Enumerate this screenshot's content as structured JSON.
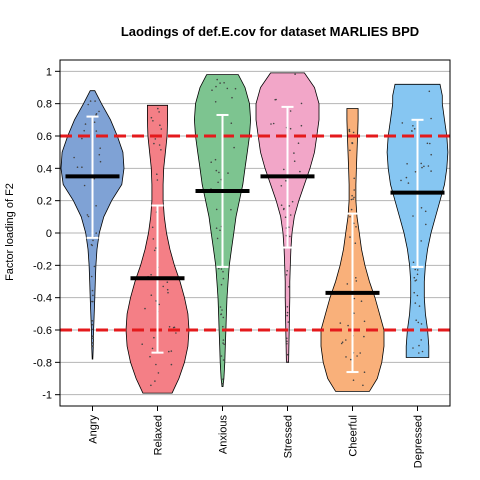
{
  "chart_data": {
    "type": "violin",
    "title": "Laodings of def.E.cov for dataset MARLIES BPD",
    "xlabel": "",
    "ylabel": "Factor loading of F2",
    "ylim": [
      -1.07,
      1.07
    ],
    "yticks": [
      1,
      0.8,
      0.6,
      0.4,
      0.2,
      0,
      -0.2,
      -0.4,
      -0.6,
      -0.8,
      -1
    ],
    "yticklabels": [
      "1",
      "0.8",
      "0.6",
      "0.4",
      "0.2",
      "0",
      "-0.2",
      "-0.4",
      "-0.6",
      "-0.8",
      "-1"
    ],
    "grid": "horizontal",
    "reference_lines": [
      0.6,
      -0.6
    ],
    "reference_line_color": "#e41a1c",
    "categories": [
      "Angry",
      "Relaxed",
      "Anxious",
      "Stressed",
      "Cheerful",
      "Depressed"
    ],
    "series": [
      {
        "color": "#7fa2d5",
        "min": -0.78,
        "max": 0.88,
        "mean": 0.35,
        "sd_low": -0.03,
        "sd_high": 0.72,
        "density": [
          [
            0.88,
            0.02
          ],
          [
            0.8,
            0.08
          ],
          [
            0.7,
            0.16
          ],
          [
            0.6,
            0.22
          ],
          [
            0.5,
            0.27
          ],
          [
            0.4,
            0.28
          ],
          [
            0.3,
            0.26
          ],
          [
            0.2,
            0.17
          ],
          [
            0.1,
            0.1
          ],
          [
            0.0,
            0.06
          ],
          [
            -0.1,
            0.04
          ],
          [
            -0.2,
            0.03
          ],
          [
            -0.3,
            0.025
          ],
          [
            -0.4,
            0.02
          ],
          [
            -0.5,
            0.015
          ],
          [
            -0.6,
            0.01
          ],
          [
            -0.7,
            0.007
          ],
          [
            -0.78,
            0.003
          ]
        ]
      },
      {
        "color": "#f47f86",
        "min": -0.99,
        "max": 0.79,
        "mean": -0.28,
        "sd_low": -0.74,
        "sd_high": 0.17,
        "density": [
          [
            0.79,
            0.09
          ],
          [
            0.7,
            0.09
          ],
          [
            0.6,
            0.085
          ],
          [
            0.5,
            0.07
          ],
          [
            0.4,
            0.055
          ],
          [
            0.3,
            0.05
          ],
          [
            0.2,
            0.05
          ],
          [
            0.1,
            0.06
          ],
          [
            0.0,
            0.08
          ],
          [
            -0.1,
            0.11
          ],
          [
            -0.2,
            0.15
          ],
          [
            -0.3,
            0.2
          ],
          [
            -0.4,
            0.24
          ],
          [
            -0.5,
            0.27
          ],
          [
            -0.6,
            0.28
          ],
          [
            -0.7,
            0.27
          ],
          [
            -0.8,
            0.24
          ],
          [
            -0.9,
            0.19
          ],
          [
            -0.99,
            0.13
          ]
        ]
      },
      {
        "color": "#7dc490",
        "min": -0.95,
        "max": 0.98,
        "mean": 0.26,
        "sd_low": -0.21,
        "sd_high": 0.73,
        "density": [
          [
            0.98,
            0.14
          ],
          [
            0.9,
            0.2
          ],
          [
            0.8,
            0.24
          ],
          [
            0.7,
            0.25
          ],
          [
            0.6,
            0.24
          ],
          [
            0.5,
            0.22
          ],
          [
            0.4,
            0.2
          ],
          [
            0.3,
            0.18
          ],
          [
            0.2,
            0.15
          ],
          [
            0.1,
            0.12
          ],
          [
            0.0,
            0.1
          ],
          [
            -0.1,
            0.08
          ],
          [
            -0.2,
            0.06
          ],
          [
            -0.3,
            0.05
          ],
          [
            -0.4,
            0.04
          ],
          [
            -0.5,
            0.035
          ],
          [
            -0.6,
            0.03
          ],
          [
            -0.7,
            0.025
          ],
          [
            -0.8,
            0.02
          ],
          [
            -0.9,
            0.012
          ],
          [
            -0.95,
            0.004
          ]
        ]
      },
      {
        "color": "#f2a6c8",
        "min": -0.8,
        "max": 0.99,
        "mean": 0.35,
        "sd_low": -0.09,
        "sd_high": 0.78,
        "density": [
          [
            0.99,
            0.15
          ],
          [
            0.9,
            0.24
          ],
          [
            0.8,
            0.28
          ],
          [
            0.7,
            0.28
          ],
          [
            0.6,
            0.26
          ],
          [
            0.5,
            0.24
          ],
          [
            0.4,
            0.2
          ],
          [
            0.3,
            0.15
          ],
          [
            0.2,
            0.1
          ],
          [
            0.1,
            0.06
          ],
          [
            0.0,
            0.04
          ],
          [
            -0.1,
            0.03
          ],
          [
            -0.2,
            0.025
          ],
          [
            -0.3,
            0.02
          ],
          [
            -0.4,
            0.02
          ],
          [
            -0.5,
            0.018
          ],
          [
            -0.6,
            0.015
          ],
          [
            -0.7,
            0.012
          ],
          [
            -0.8,
            0.01
          ]
        ]
      },
      {
        "color": "#f9b07a",
        "min": -0.98,
        "max": 0.77,
        "mean": -0.37,
        "sd_low": -0.86,
        "sd_high": 0.12,
        "density": [
          [
            0.77,
            0.05
          ],
          [
            0.7,
            0.05
          ],
          [
            0.6,
            0.045
          ],
          [
            0.5,
            0.04
          ],
          [
            0.4,
            0.035
          ],
          [
            0.3,
            0.03
          ],
          [
            0.2,
            0.03
          ],
          [
            0.1,
            0.04
          ],
          [
            0.0,
            0.06
          ],
          [
            -0.1,
            0.08
          ],
          [
            -0.2,
            0.11
          ],
          [
            -0.3,
            0.15
          ],
          [
            -0.4,
            0.2
          ],
          [
            -0.5,
            0.24
          ],
          [
            -0.6,
            0.28
          ],
          [
            -0.7,
            0.28
          ],
          [
            -0.8,
            0.26
          ],
          [
            -0.9,
            0.22
          ],
          [
            -0.98,
            0.15
          ]
        ]
      },
      {
        "color": "#86c6f2",
        "min": -0.77,
        "max": 0.92,
        "mean": 0.25,
        "sd_low": -0.21,
        "sd_high": 0.7,
        "density": [
          [
            0.92,
            0.2
          ],
          [
            0.85,
            0.22
          ],
          [
            0.8,
            0.22
          ],
          [
            0.7,
            0.24
          ],
          [
            0.6,
            0.26
          ],
          [
            0.5,
            0.27
          ],
          [
            0.4,
            0.26
          ],
          [
            0.3,
            0.24
          ],
          [
            0.2,
            0.2
          ],
          [
            0.1,
            0.16
          ],
          [
            0.0,
            0.12
          ],
          [
            -0.1,
            0.09
          ],
          [
            -0.2,
            0.07
          ],
          [
            -0.3,
            0.06
          ],
          [
            -0.4,
            0.06
          ],
          [
            -0.5,
            0.07
          ],
          [
            -0.6,
            0.09
          ],
          [
            -0.7,
            0.1
          ],
          [
            -0.77,
            0.1
          ]
        ]
      }
    ]
  }
}
